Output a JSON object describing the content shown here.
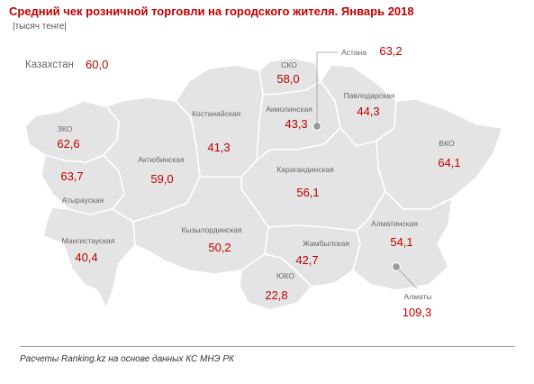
{
  "title": "Средний чек розничной торговли на городского жителя. Январь 2018",
  "unit": "|тысяч тенге|",
  "national": {
    "label": "Казахстан",
    "value": "60,0"
  },
  "regions": {
    "zko": {
      "label": "ЗКО",
      "value": "62,6"
    },
    "atyrau": {
      "label": "Атырауская",
      "value": "63,7"
    },
    "mangistau": {
      "label": "Мангистауская",
      "value": "40,4"
    },
    "aktobe": {
      "label": "Актюбинская",
      "value": "59,0"
    },
    "kostanay": {
      "label": "Костанайская",
      "value": "41,3"
    },
    "sko": {
      "label": "СКО",
      "value": "58,0"
    },
    "akmola": {
      "label": "Акмолинская",
      "value": "43,3"
    },
    "pavlodar": {
      "label": "Павлодарская",
      "value": "44,3"
    },
    "vko": {
      "label": "ВКО",
      "value": "64,1"
    },
    "karaganda": {
      "label": "Карагандинская",
      "value": "56,1"
    },
    "kyzylorda": {
      "label": "Кызылординская",
      "value": "50,2"
    },
    "zhambyl": {
      "label": "Жамбылская",
      "value": "42,7"
    },
    "almaty_region": {
      "label": "Алматинская",
      "value": "54,1"
    },
    "yuko": {
      "label": "ЮКО",
      "value": "22,8"
    }
  },
  "cities": {
    "astana": {
      "label": "Астана",
      "value": "63,2"
    },
    "almaty": {
      "label": "Алматы",
      "value": "109,3"
    }
  },
  "source": "Расчеты Ranking.kz на основе данных КС МНЭ РК",
  "colors": {
    "region_fill": "#e4e4e4",
    "border": "#ffffff",
    "value": "#c00000",
    "label": "#666666",
    "city_dot": "#9a9a9a"
  }
}
